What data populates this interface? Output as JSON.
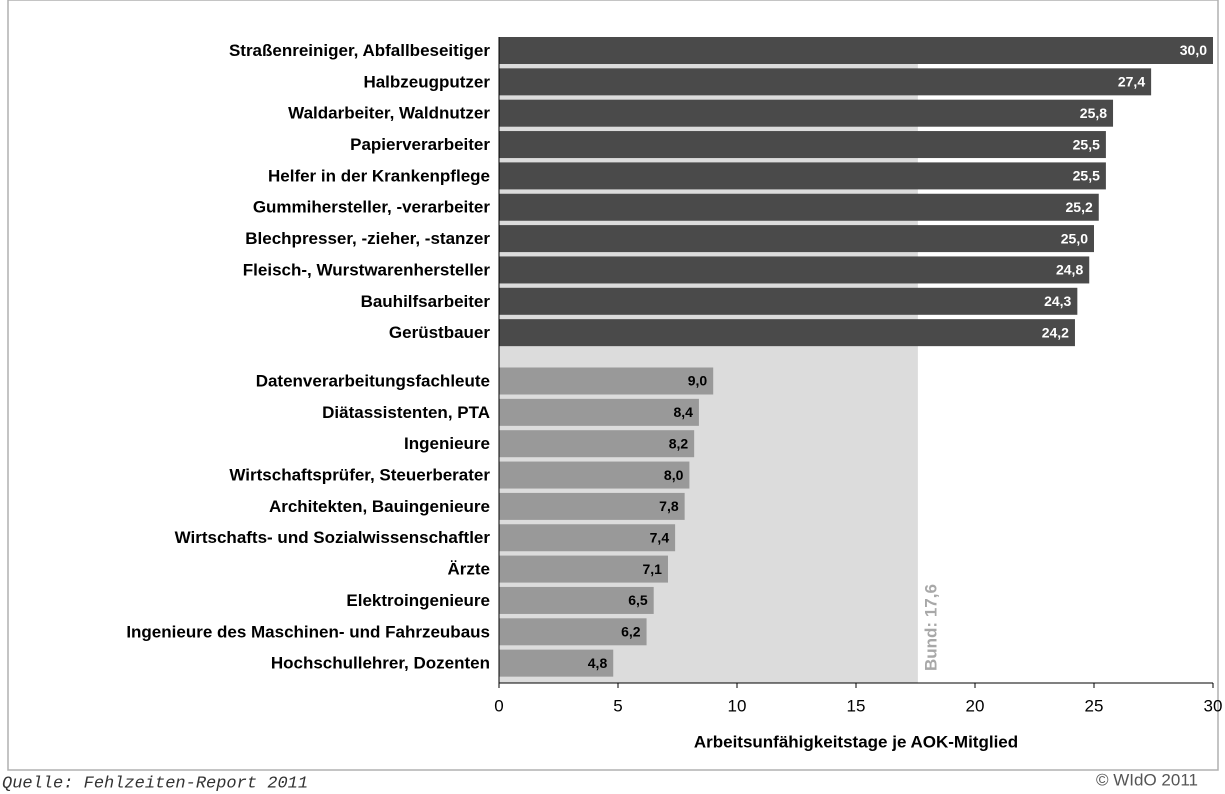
{
  "chart_data": {
    "type": "barh",
    "categories": [
      "Straßenreiniger, Abfallbeseitiger",
      "Halbzeugputzer",
      "Waldarbeiter, Waldnutzer",
      "Papierverarbeiter",
      "Helfer in der Krankenpflege",
      "Gummihersteller, -verarbeiter",
      "Blechpresser, -zieher, -stanzer",
      "Fleisch-, Wurstwarenhersteller",
      "Bauhilfsarbeiter",
      "Gerüstbauer",
      "Datenverarbeitungsfachleute",
      "Diätassistenten, PTA",
      "Ingenieure",
      "Wirtschaftsprüfer, Steuerberater",
      "Architekten, Bauingenieure",
      "Wirtschafts- und Sozialwissenschaftler",
      "Ärzte",
      "Elektroingenieure",
      "Ingenieure des Maschinen- und Fahrzeubaus",
      "Hochschullehrer, Dozenten"
    ],
    "values": [
      30.0,
      27.4,
      25.8,
      25.5,
      25.5,
      25.2,
      25.0,
      24.8,
      24.3,
      24.2,
      9.0,
      8.4,
      8.2,
      8.0,
      7.8,
      7.4,
      7.1,
      6.5,
      6.2,
      4.8
    ],
    "value_labels": [
      "30,0",
      "27,4",
      "25,8",
      "25,5",
      "25,5",
      "25,2",
      "25,0",
      "24,8",
      "24,3",
      "24,2",
      "9,0",
      "8,4",
      "8,2",
      "8,0",
      "7,8",
      "7,4",
      "7,1",
      "6,5",
      "6,2",
      "4,8"
    ],
    "colors": [
      "#4a4a4a",
      "#4a4a4a",
      "#4a4a4a",
      "#4a4a4a",
      "#4a4a4a",
      "#4a4a4a",
      "#4a4a4a",
      "#4a4a4a",
      "#4a4a4a",
      "#4a4a4a",
      "#999999",
      "#999999",
      "#999999",
      "#999999",
      "#999999",
      "#999999",
      "#999999",
      "#999999",
      "#999999",
      "#999999"
    ],
    "reference": {
      "value": 17.6,
      "label": "Bund: 17,6",
      "color": "#dcdcdc"
    },
    "xlabel": "Arbeitsunfähigkeitstage je AOK-Mitglied",
    "xlim": [
      0,
      30
    ],
    "xticks": [
      0,
      5,
      10,
      15,
      20,
      25,
      30
    ],
    "source": "Quelle: Fehlzeiten-Report 2011",
    "copyright": "© WIdO 2011"
  }
}
